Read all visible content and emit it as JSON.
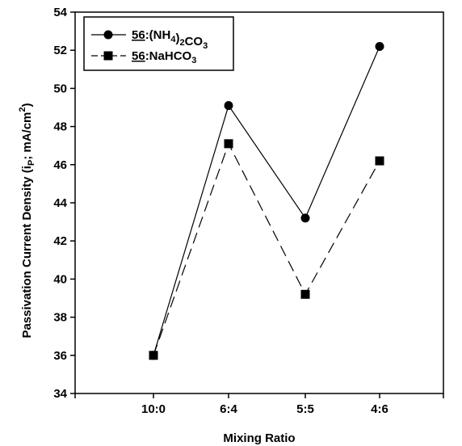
{
  "chart_data": {
    "type": "line",
    "categories": [
      "10:0",
      "6:4",
      "5:5",
      "4:6"
    ],
    "xlabel": "Mixing Ratio",
    "ylabel": "Passivation Current Density (i_P; mA/cm^2)",
    "ylim": [
      34,
      54
    ],
    "yticks": [
      34,
      36,
      38,
      40,
      42,
      44,
      46,
      48,
      50,
      52,
      54
    ],
    "grid": false,
    "legend_position": "top-left",
    "series": [
      {
        "name": "56:(NH4)2CO3",
        "name_prefix": "56",
        "name_suffix": ":(NH4)2CO3",
        "marker": "circle",
        "line_style": "solid",
        "values": [
          36.0,
          49.1,
          43.2,
          52.2
        ]
      },
      {
        "name": "56:NaHCO3",
        "name_prefix": "56",
        "name_suffix": ":NaHCO3",
        "marker": "square",
        "line_style": "dashed",
        "values": [
          36.0,
          47.1,
          39.2,
          46.2
        ]
      }
    ]
  }
}
